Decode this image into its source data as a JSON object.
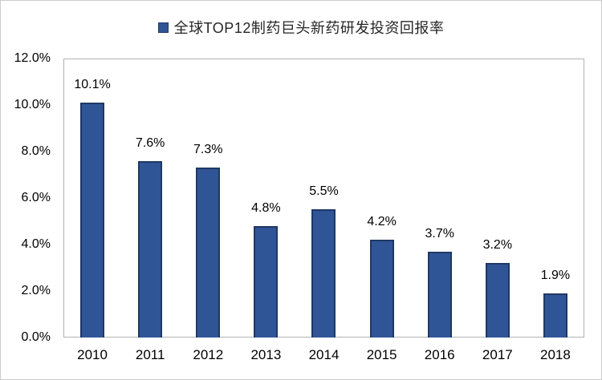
{
  "legend": {
    "label": "全球TOP12制药巨头新药研发投资回报率"
  },
  "colors": {
    "bar_fill": "#2F5597",
    "bar_border": "#1F3864",
    "axis_line": "#B3B3B3",
    "text": "#000000"
  },
  "chart_data": {
    "type": "bar",
    "title": "全球TOP12制药巨头新药研发投资回报率",
    "categories": [
      "2010",
      "2011",
      "2012",
      "2013",
      "2014",
      "2015",
      "2016",
      "2017",
      "2018"
    ],
    "values": [
      10.1,
      7.6,
      7.3,
      4.8,
      5.5,
      4.2,
      3.7,
      3.2,
      1.9
    ],
    "value_labels": [
      "10.1%",
      "7.6%",
      "7.3%",
      "4.8%",
      "5.5%",
      "4.2%",
      "3.7%",
      "3.2%",
      "1.9%"
    ],
    "xlabel": "",
    "ylabel": "",
    "ylim": [
      0,
      12
    ],
    "ytick_step": 2,
    "ytick_labels": [
      "0.0%",
      "2.0%",
      "4.0%",
      "6.0%",
      "8.0%",
      "10.0%",
      "12.0%"
    ],
    "grid": false,
    "legend_position": "top-center"
  }
}
